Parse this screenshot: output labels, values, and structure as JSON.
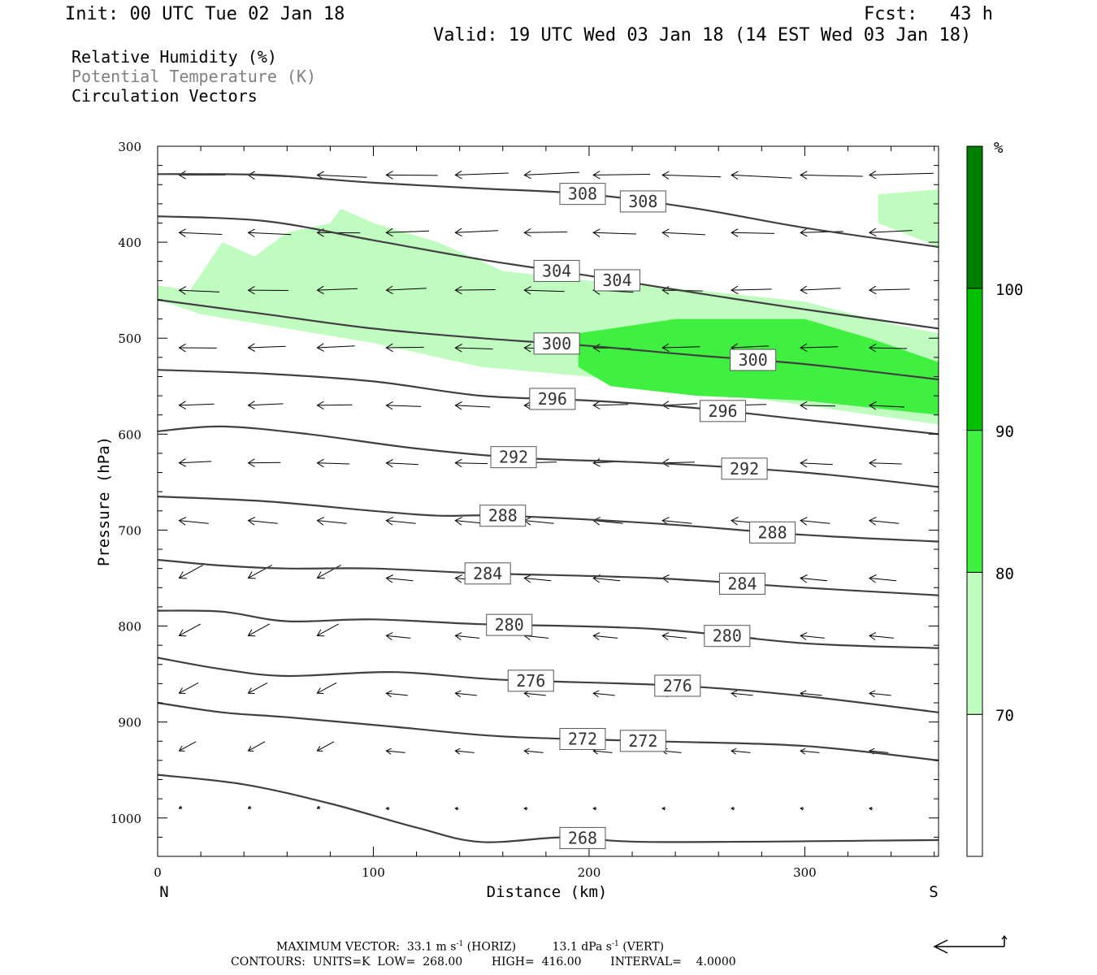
{
  "header": {
    "init": "Init: 00 UTC Tue 02 Jan 18",
    "fcst": "Fcst:   43 h",
    "valid": "Valid: 19 UTC Wed 03 Jan 18 (14 EST Wed 03 Jan 18)"
  },
  "legend": {
    "rh": "Relative Humidity (%)",
    "theta": "Potential Temperature (K)",
    "vectors": "Circulation Vectors"
  },
  "colors": {
    "rh70": "#c0fcc0",
    "rh80": "#40f040",
    "rh90": "#00c000",
    "rh100": "#008000",
    "contour": "#404040",
    "theta_text": "#7f7f7f"
  },
  "chart_data": {
    "type": "cross-section",
    "xlabel": "Distance (km)",
    "ylabel": "Pressure (hPa)",
    "xlim": [
      0,
      362
    ],
    "ylim": [
      1040,
      300
    ],
    "x_ticks": [
      "0",
      "100",
      "200",
      "300"
    ],
    "x_tick_values": [
      0,
      100,
      200,
      300
    ],
    "y_ticks": [
      "300",
      "400",
      "500",
      "600",
      "700",
      "800",
      "900",
      "1000"
    ],
    "y_tick_values": [
      300,
      400,
      500,
      600,
      700,
      800,
      900,
      1000
    ],
    "end_labels": {
      "left": "N",
      "right": "S"
    },
    "colorbar": {
      "unit": "%",
      "levels": [
        "70",
        "80",
        "90",
        "100"
      ],
      "level_values": [
        70,
        80,
        90,
        100
      ]
    },
    "theta_contours": [
      {
        "value": 308,
        "labels": [
          "308",
          "308"
        ],
        "label_x": [
          197,
          225
        ],
        "points": [
          [
            0,
            329
          ],
          [
            50,
            330
          ],
          [
            100,
            338
          ],
          [
            150,
            344
          ],
          [
            200,
            350
          ],
          [
            250,
            365
          ],
          [
            300,
            385
          ],
          [
            362,
            405
          ]
        ]
      },
      {
        "value": 304,
        "labels": [
          "304",
          "304"
        ],
        "label_x": [
          185,
          213
        ],
        "points": [
          [
            0,
            373
          ],
          [
            50,
            378
          ],
          [
            100,
            398
          ],
          [
            150,
            418
          ],
          [
            200,
            435
          ],
          [
            250,
            453
          ],
          [
            300,
            470
          ],
          [
            362,
            490
          ]
        ]
      },
      {
        "value": 300,
        "labels": [
          "300",
          "300"
        ],
        "label_x": [
          185,
          276
        ],
        "points": [
          [
            0,
            460
          ],
          [
            50,
            475
          ],
          [
            100,
            490
          ],
          [
            150,
            500
          ],
          [
            200,
            508
          ],
          [
            250,
            518
          ],
          [
            300,
            527
          ],
          [
            362,
            543
          ]
        ]
      },
      {
        "value": 296,
        "labels": [
          "296",
          "296"
        ],
        "label_x": [
          183,
          262
        ],
        "points": [
          [
            0,
            533
          ],
          [
            50,
            537
          ],
          [
            100,
            545
          ],
          [
            150,
            560
          ],
          [
            200,
            565
          ],
          [
            250,
            573
          ],
          [
            300,
            585
          ],
          [
            362,
            600
          ]
        ]
      },
      {
        "value": 292,
        "labels": [
          "292",
          "292"
        ],
        "label_x": [
          165,
          272
        ],
        "points": [
          [
            0,
            597
          ],
          [
            30,
            592
          ],
          [
            70,
            600
          ],
          [
            120,
            615
          ],
          [
            170,
            625
          ],
          [
            230,
            630
          ],
          [
            300,
            640
          ],
          [
            362,
            655
          ]
        ]
      },
      {
        "value": 288,
        "labels": [
          "288",
          "288"
        ],
        "label_x": [
          160,
          285
        ],
        "points": [
          [
            0,
            665
          ],
          [
            50,
            670
          ],
          [
            100,
            680
          ],
          [
            130,
            685
          ],
          [
            160,
            685
          ],
          [
            230,
            693
          ],
          [
            300,
            705
          ],
          [
            362,
            712
          ]
        ]
      },
      {
        "value": 284,
        "labels": [
          "284",
          "284"
        ],
        "label_x": [
          153,
          271
        ],
        "points": [
          [
            0,
            731
          ],
          [
            30,
            737
          ],
          [
            60,
            740
          ],
          [
            100,
            740
          ],
          [
            150,
            745
          ],
          [
            230,
            750
          ],
          [
            300,
            760
          ],
          [
            362,
            768
          ]
        ]
      },
      {
        "value": 280,
        "labels": [
          "280",
          "280"
        ],
        "label_x": [
          163,
          264
        ],
        "points": [
          [
            0,
            784
          ],
          [
            30,
            785
          ],
          [
            60,
            795
          ],
          [
            100,
            793
          ],
          [
            150,
            798
          ],
          [
            230,
            803
          ],
          [
            300,
            818
          ],
          [
            362,
            823
          ]
        ]
      },
      {
        "value": 276,
        "labels": [
          "276",
          "276"
        ],
        "label_x": [
          173,
          241
        ],
        "points": [
          [
            0,
            833
          ],
          [
            30,
            845
          ],
          [
            60,
            852
          ],
          [
            110,
            848
          ],
          [
            160,
            856
          ],
          [
            240,
            862
          ],
          [
            300,
            873
          ],
          [
            362,
            890
          ]
        ]
      },
      {
        "value": 272,
        "labels": [
          "272",
          "272"
        ],
        "label_x": [
          197,
          225
        ],
        "points": [
          [
            0,
            880
          ],
          [
            30,
            890
          ],
          [
            60,
            895
          ],
          [
            110,
            905
          ],
          [
            160,
            915
          ],
          [
            230,
            920
          ],
          [
            300,
            925
          ],
          [
            362,
            940
          ]
        ]
      },
      {
        "value": 268,
        "labels": [
          "268"
        ],
        "label_x": [
          197
        ],
        "points": [
          [
            0,
            955
          ],
          [
            40,
            965
          ],
          [
            80,
            985
          ],
          [
            120,
            1010
          ],
          [
            150,
            1025
          ],
          [
            190,
            1020
          ],
          [
            230,
            1025
          ],
          [
            362,
            1023
          ]
        ]
      }
    ],
    "rh_shading": [
      {
        "level": 70,
        "outline": [
          [
            0,
            445
          ],
          [
            15,
            450
          ],
          [
            30,
            400
          ],
          [
            45,
            415
          ],
          [
            60,
            390
          ],
          [
            80,
            380
          ],
          [
            85,
            365
          ],
          [
            100,
            380
          ],
          [
            130,
            400
          ],
          [
            160,
            430
          ],
          [
            200,
            440
          ],
          [
            250,
            450
          ],
          [
            300,
            462
          ],
          [
            340,
            485
          ],
          [
            362,
            495
          ],
          [
            362,
            590
          ],
          [
            300,
            570
          ],
          [
            250,
            555
          ],
          [
            200,
            540
          ],
          [
            150,
            530
          ],
          [
            100,
            505
          ],
          [
            60,
            490
          ],
          [
            20,
            475
          ],
          [
            0,
            460
          ]
        ]
      },
      {
        "level": 70,
        "outline": [
          [
            334,
            350
          ],
          [
            362,
            345
          ],
          [
            362,
            405
          ],
          [
            334,
            380
          ]
        ]
      },
      {
        "level": 80,
        "outline": [
          [
            195,
            495
          ],
          [
            240,
            480
          ],
          [
            300,
            480
          ],
          [
            330,
            500
          ],
          [
            362,
            525
          ],
          [
            362,
            580
          ],
          [
            300,
            565
          ],
          [
            250,
            560
          ],
          [
            210,
            550
          ],
          [
            195,
            530
          ]
        ]
      }
    ],
    "vectors_note": "Circulation Vectors",
    "max_vector": {
      "label": "MAXIMUM VECTOR:",
      "horiz": "33.1 m s",
      "horiz_unit": "(HORIZ)",
      "vert": "13.1 dPa s",
      "vert_unit": "(VERT)",
      "exponent": "-1"
    },
    "contours_info": {
      "label": "CONTOURS:",
      "units": "UNITS=K",
      "low": "LOW=  268.00",
      "high": "HIGH=  416.00",
      "interval": "INTERVAL=    4.0000"
    }
  }
}
